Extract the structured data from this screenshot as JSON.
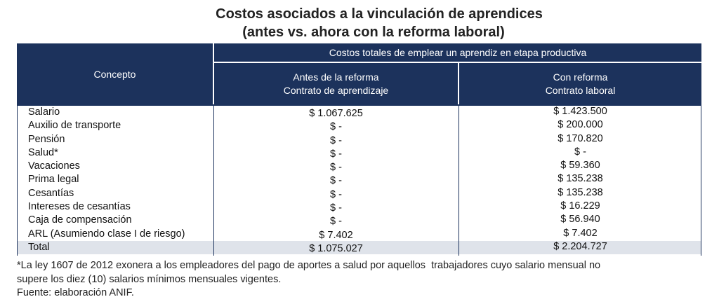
{
  "title": {
    "line1": "Costos asociados a la vinculación de aprendices",
    "line2": "(antes vs. ahora con la reforma laboral)"
  },
  "header": {
    "concept": "Concepto",
    "total_costs": "Costos totales de emplear un aprendiz en etapa productiva",
    "before_line1": "Antes de la reforma",
    "before_line2": "Contrato de aprendizaje",
    "after_line1": "Con reforma",
    "after_line2": "Contrato laboral"
  },
  "rows": [
    {
      "concept": "Salario",
      "before": "$ 1.067.625",
      "after": "$ 1.423.500"
    },
    {
      "concept": "Auxilio de transporte",
      "before": "$ -",
      "after": "$ 200.000"
    },
    {
      "concept": "Pensión",
      "before": "$ -",
      "after": "$ 170.820"
    },
    {
      "concept": "Salud*",
      "before": "$ -",
      "after": "$ -"
    },
    {
      "concept": "Vacaciones",
      "before": "$ -",
      "after": "$ 59.360"
    },
    {
      "concept": "Prima legal",
      "before": "$ -",
      "after": "$ 135.238"
    },
    {
      "concept": "Cesantías",
      "before": "$ -",
      "after": "$ 135.238"
    },
    {
      "concept": "Intereses de cesantías",
      "before": "$ -",
      "after": "$ 16.229"
    },
    {
      "concept": "Caja de compensación",
      "before": "$ -",
      "after": "$ 56.940"
    },
    {
      "concept": "ARL (Asumiendo clase I de riesgo)",
      "before": "$ 7.402",
      "after": "$ 7.402"
    },
    {
      "concept": "Total",
      "before": "$ 1.075.027",
      "after": "$ 2.204.727"
    }
  ],
  "notes": {
    "line1": "*La ley 1607 de 2012 exonera a los empleadores del pago de aportes a salud por aquellos  trabajadores cuyo salario mensual no",
    "line2": "supere los diez (10) salarios mínimos mensuales vigentes.",
    "line3": "Fuente: elaboración ANIF."
  }
}
